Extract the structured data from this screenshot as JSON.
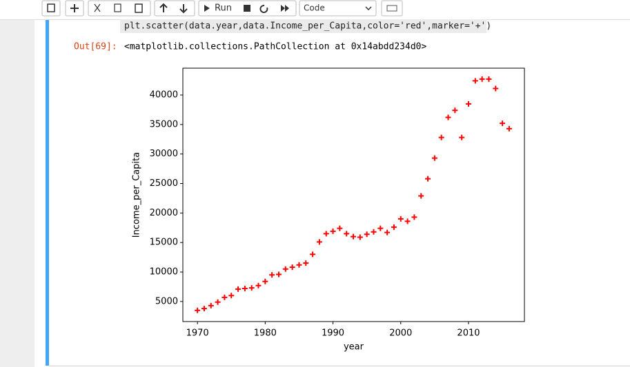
{
  "toolbar": {
    "run": "Run",
    "cell_type": "Code"
  },
  "cell": {
    "code": "plt.scatter(data.year,data.Income_per_Capita,color='red',marker='+')",
    "out_prompt": "Out[69]:",
    "output_text": "<matplotlib.collections.PathCollection at 0x14abdd234d0>"
  },
  "chart_data": {
    "type": "scatter",
    "xlabel": "year",
    "ylabel": "Income_per_Capita",
    "x": [
      1970,
      1971,
      1972,
      1973,
      1974,
      1975,
      1976,
      1977,
      1978,
      1979,
      1980,
      1981,
      1982,
      1983,
      1984,
      1985,
      1986,
      1987,
      1988,
      1989,
      1990,
      1991,
      1992,
      1993,
      1994,
      1995,
      1996,
      1997,
      1998,
      1999,
      2000,
      2001,
      2002,
      2003,
      2004,
      2005,
      2006,
      2007,
      2008,
      2009,
      2010,
      2011,
      2012,
      2013,
      2014,
      2015,
      2016
    ],
    "series": [
      {
        "color": "red",
        "marker": "+",
        "values": [
          3500,
          3800,
          4300,
          4900,
          5700,
          6000,
          7100,
          7200,
          7300,
          7700,
          8400,
          9500,
          9600,
          10500,
          10800,
          11200,
          11500,
          13000,
          15100,
          16500,
          16900,
          17400,
          16500,
          16000,
          15900,
          16400,
          16800,
          17400,
          16700,
          17600,
          19000,
          18600,
          19300,
          22900,
          25800,
          29300,
          32800,
          36200,
          37400,
          32800,
          38500,
          42400,
          42700,
          42700,
          41100,
          35200,
          34300
        ]
      }
    ],
    "xlim": [
      1967.85,
      2018.25
    ],
    "ylim": [
      1600,
      44550
    ],
    "xticks": [
      1970,
      1980,
      1990,
      2000,
      2010
    ],
    "yticks": [
      5000,
      10000,
      15000,
      20000,
      25000,
      30000,
      35000,
      40000
    ]
  }
}
